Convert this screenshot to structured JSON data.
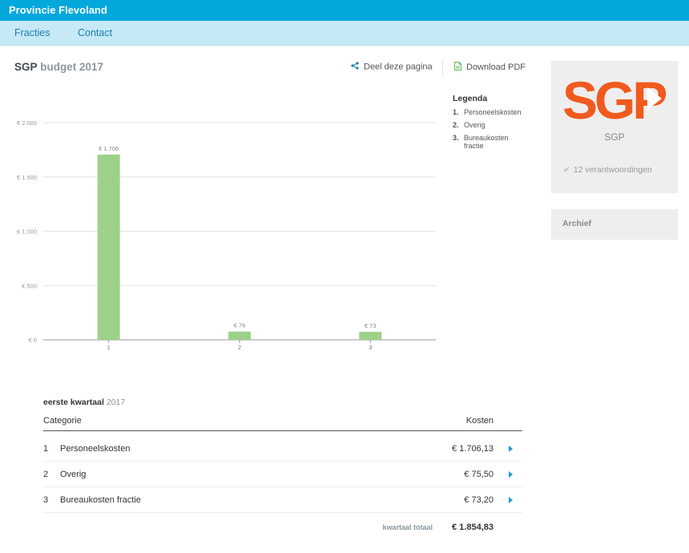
{
  "header": {
    "title": "Provincie Flevoland"
  },
  "nav": {
    "items": [
      "Fracties",
      "Contact"
    ]
  },
  "page": {
    "party": "SGP",
    "title_rest": "budget 2017"
  },
  "actions": {
    "share": "Deel deze pagina",
    "download": "Download PDF"
  },
  "legend": {
    "title": "Legenda",
    "items": [
      {
        "num": "1.",
        "label": "Personeelskosten"
      },
      {
        "num": "2.",
        "label": "Overig"
      },
      {
        "num": "3.",
        "label": "Bureaukosten fractie"
      }
    ]
  },
  "chart_data": {
    "type": "bar",
    "categories": [
      "1",
      "2",
      "3"
    ],
    "values": [
      1706,
      76,
      73
    ],
    "data_labels": [
      "€ 1.706",
      "€ 76",
      "€ 73"
    ],
    "y_ticks": [
      0,
      500,
      1000,
      1500,
      2000
    ],
    "y_tick_labels": [
      "€ 0",
      "€ 500",
      "€ 1.000",
      "€ 1.500",
      "€ 2.000"
    ],
    "ylim": [
      0,
      2000
    ],
    "grid": true,
    "color": "#9dd18a"
  },
  "table": {
    "caption_bold": "eerste kwartaal",
    "caption_year": "2017",
    "headers": {
      "category": "Categorie",
      "cost": "Kosten"
    },
    "rows": [
      {
        "num": "1",
        "name": "Personeelskosten",
        "cost": "€ 1.706,13"
      },
      {
        "num": "2",
        "name": "Overig",
        "cost": "€ 75,50"
      },
      {
        "num": "3",
        "name": "Bureaukosten fractie",
        "cost": "€ 73,20"
      }
    ],
    "total_label": "kwartaal totaal",
    "total_value": "€ 1.854,83"
  },
  "party_card": {
    "logo_text": "SGP",
    "name": "SGP",
    "answers": "12 verantwoordingen",
    "logo_color": "#f05a1e"
  },
  "archive": {
    "label": "Archief"
  },
  "colors": {
    "topbar": "#00a8dc",
    "navbar": "#c6e9f6",
    "link": "#1b7fae",
    "arrow": "#1b9ad6"
  }
}
